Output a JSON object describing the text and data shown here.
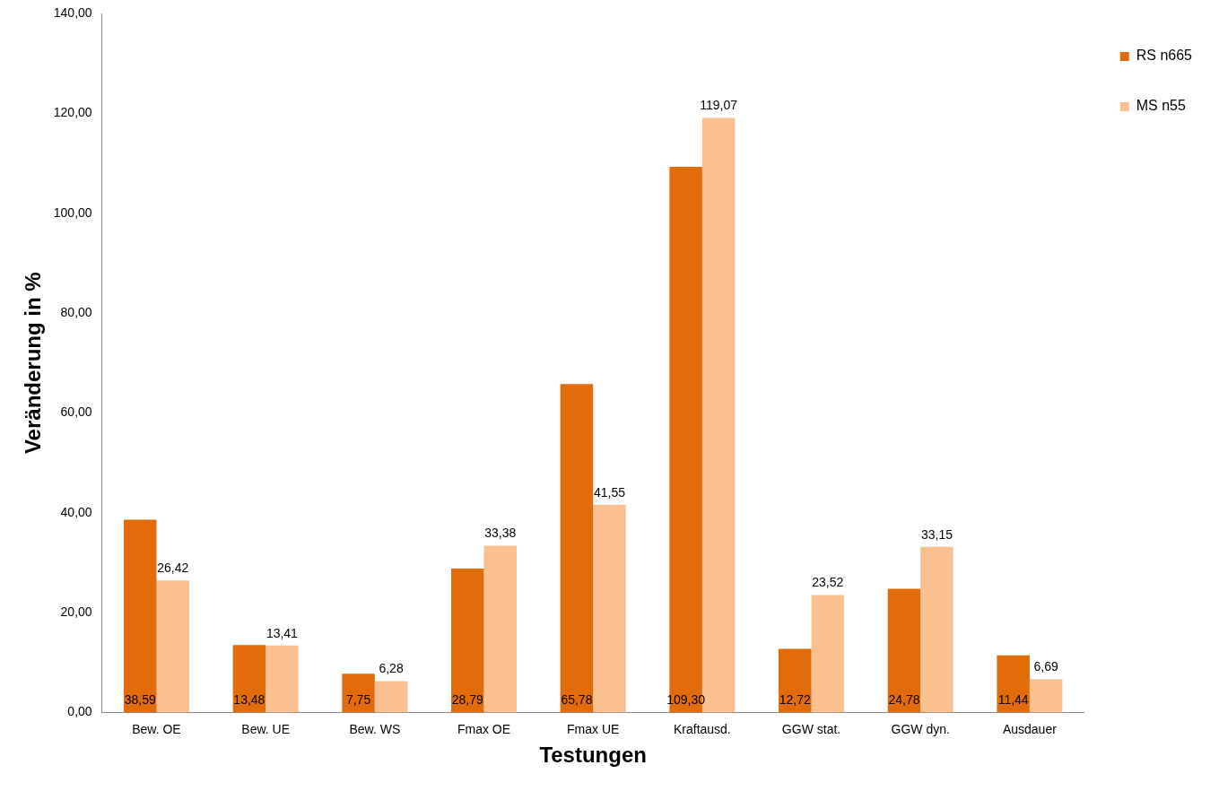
{
  "chart_data": {
    "type": "bar",
    "xlabel": "Testungen",
    "ylabel": "Veränderung in %",
    "categories": [
      "Bew. OE",
      "Bew. UE",
      "Bew. WS",
      "Fmax OE",
      "Fmax UE",
      "Kraftausd.",
      "GGW stat.",
      "GGW dyn.",
      "Ausdauer"
    ],
    "series": [
      {
        "name": "RS n665",
        "color": "#e36c0a",
        "values": [
          38.59,
          13.48,
          7.75,
          28.79,
          65.78,
          109.3,
          12.72,
          24.78,
          11.44
        ],
        "value_labels": [
          "38,59",
          "13,48",
          "7,75",
          "28,79",
          "65,78",
          "109,30",
          "12,72",
          "24,78",
          "11,44"
        ]
      },
      {
        "name": "MS n55",
        "color": "#fac090",
        "values": [
          26.42,
          13.41,
          6.28,
          33.38,
          41.55,
          119.07,
          23.52,
          33.15,
          6.69
        ],
        "value_labels": [
          "26,42",
          "13,41",
          "6,28",
          "33,38",
          "41,55",
          "119,07",
          "23,52",
          "33,15",
          "6,69"
        ]
      }
    ],
    "ylim": [
      0,
      140
    ],
    "yticks": [
      {
        "value": 0,
        "label": "0,00"
      },
      {
        "value": 20,
        "label": "20,00"
      },
      {
        "value": 40,
        "label": "40,00"
      },
      {
        "value": 60,
        "label": "60,00"
      },
      {
        "value": 80,
        "label": "80,00"
      },
      {
        "value": 100,
        "label": "100,00"
      },
      {
        "value": 120,
        "label": "120,00"
      },
      {
        "value": 140,
        "label": "140,00"
      }
    ],
    "grid": false,
    "legend": "top right"
  }
}
